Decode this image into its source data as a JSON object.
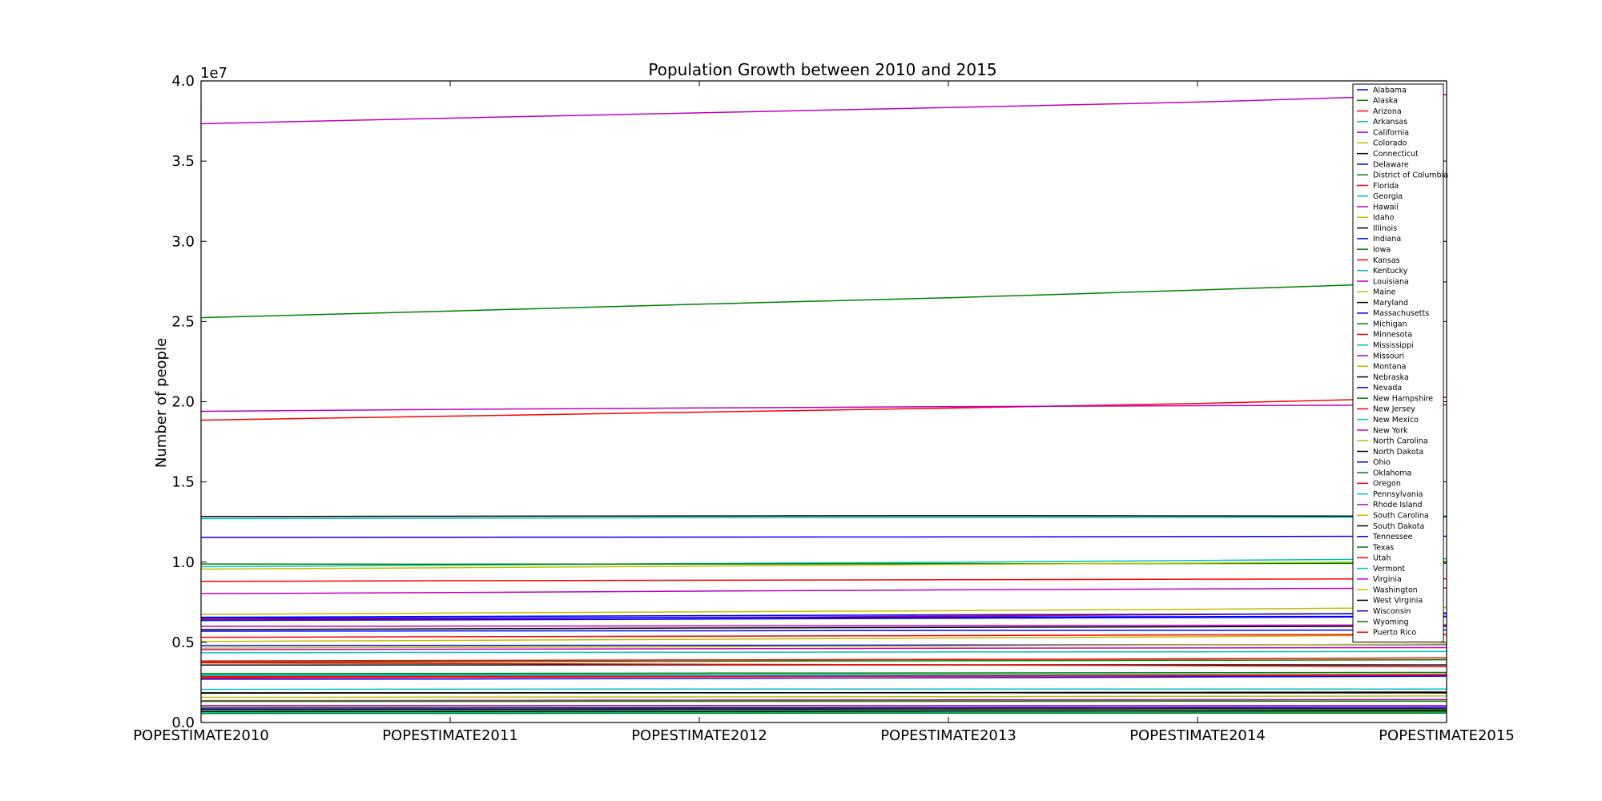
{
  "chart_data": {
    "type": "line",
    "title": "Population Growth between 2010 and 2015",
    "xlabel": "",
    "ylabel": "Number of people",
    "y_scale_label": "1e7",
    "categories": [
      "POPESTIMATE2010",
      "POPESTIMATE2011",
      "POPESTIMATE2012",
      "POPESTIMATE2013",
      "POPESTIMATE2014",
      "POPESTIMATE2015"
    ],
    "yticks": [
      "0.0",
      "0.5",
      "1.0",
      "1.5",
      "2.0",
      "2.5",
      "3.0",
      "3.5",
      "4.0"
    ],
    "ylim": [
      0,
      40000000
    ],
    "grid": false,
    "legend_position": "top-right",
    "series": [
      {
        "name": "Alabama",
        "color": "#0000ff",
        "values": [
          4785000,
          4800000,
          4815000,
          4830000,
          4845000,
          4859000
        ]
      },
      {
        "name": "Alaska",
        "color": "#008000",
        "values": [
          714000,
          722000,
          731000,
          737000,
          737000,
          738000
        ]
      },
      {
        "name": "Arizona",
        "color": "#ff0000",
        "values": [
          6410000,
          6470000,
          6550000,
          6630000,
          6730000,
          6828000
        ]
      },
      {
        "name": "Arkansas",
        "color": "#00bfbf",
        "values": [
          2922000,
          2940000,
          2952000,
          2960000,
          2968000,
          2978000
        ]
      },
      {
        "name": "California",
        "color": "#bf00bf",
        "values": [
          37330000,
          37680000,
          38010000,
          38340000,
          38680000,
          39140000
        ]
      },
      {
        "name": "Colorado",
        "color": "#bfbf00",
        "values": [
          5050000,
          5120000,
          5190000,
          5270000,
          5350000,
          5457000
        ]
      },
      {
        "name": "Connecticut",
        "color": "#000000",
        "values": [
          3580000,
          3590000,
          3594000,
          3598000,
          3596000,
          3591000
        ]
      },
      {
        "name": "Delaware",
        "color": "#0000ff",
        "values": [
          900000,
          908000,
          917000,
          925000,
          935000,
          946000
        ]
      },
      {
        "name": "District of Columbia",
        "color": "#008000",
        "values": [
          605000,
          620000,
          635000,
          650000,
          662000,
          672000
        ]
      },
      {
        "name": "Florida",
        "color": "#ff0000",
        "values": [
          18850000,
          19100000,
          19350000,
          19600000,
          19890000,
          20270000
        ]
      },
      {
        "name": "Georgia",
        "color": "#00bfbf",
        "values": [
          9710000,
          9810000,
          9910000,
          9990000,
          10100000,
          10210000
        ]
      },
      {
        "name": "Hawaii",
        "color": "#bf00bf",
        "values": [
          1364000,
          1379000,
          1395000,
          1409000,
          1417000,
          1431000
        ]
      },
      {
        "name": "Idaho",
        "color": "#bfbf00",
        "values": [
          1570000,
          1584000,
          1595000,
          1612000,
          1634000,
          1655000
        ]
      },
      {
        "name": "Illinois",
        "color": "#000000",
        "values": [
          12840000,
          12860000,
          12880000,
          12890000,
          12880000,
          12860000
        ]
      },
      {
        "name": "Indiana",
        "color": "#0000ff",
        "values": [
          6490000,
          6520000,
          6540000,
          6570000,
          6600000,
          6620000
        ]
      },
      {
        "name": "Iowa",
        "color": "#008000",
        "values": [
          3050000,
          3060000,
          3080000,
          3090000,
          3110000,
          3120000
        ]
      },
      {
        "name": "Kansas",
        "color": "#ff0000",
        "values": [
          2860000,
          2870000,
          2880000,
          2890000,
          2900000,
          2910000
        ]
      },
      {
        "name": "Kentucky",
        "color": "#00bfbf",
        "values": [
          4350000,
          4370000,
          4380000,
          4400000,
          4410000,
          4425000
        ]
      },
      {
        "name": "Louisiana",
        "color": "#bf00bf",
        "values": [
          4540000,
          4570000,
          4600000,
          4630000,
          4650000,
          4670000
        ]
      },
      {
        "name": "Maine",
        "color": "#bfbf00",
        "values": [
          1328000,
          1328000,
          1328000,
          1328000,
          1330000,
          1329000
        ]
      },
      {
        "name": "Maryland",
        "color": "#000000",
        "values": [
          5790000,
          5840000,
          5890000,
          5930000,
          5970000,
          6006000
        ]
      },
      {
        "name": "Massachusetts",
        "color": "#0000ff",
        "values": [
          6560000,
          6610000,
          6660000,
          6710000,
          6750000,
          6794000
        ]
      },
      {
        "name": "Michigan",
        "color": "#008000",
        "values": [
          9880000,
          9870000,
          9880000,
          9900000,
          9910000,
          9923000
        ]
      },
      {
        "name": "Minnesota",
        "color": "#ff0000",
        "values": [
          5310000,
          5350000,
          5380000,
          5420000,
          5460000,
          5490000
        ]
      },
      {
        "name": "Mississippi",
        "color": "#00bfbf",
        "values": [
          2970000,
          2980000,
          2985000,
          2990000,
          2990000,
          2992000
        ]
      },
      {
        "name": "Missouri",
        "color": "#bf00bf",
        "values": [
          5996000,
          6010000,
          6025000,
          6040000,
          6060000,
          6084000
        ]
      },
      {
        "name": "Montana",
        "color": "#bfbf00",
        "values": [
          990000,
          997000,
          1005000,
          1015000,
          1024000,
          1033000
        ]
      },
      {
        "name": "Nebraska",
        "color": "#000000",
        "values": [
          1830000,
          1842000,
          1855000,
          1868000,
          1881000,
          1896000
        ]
      },
      {
        "name": "Nevada",
        "color": "#0000ff",
        "values": [
          2700000,
          2710000,
          2750000,
          2790000,
          2840000,
          2891000
        ]
      },
      {
        "name": "New Hampshire",
        "color": "#008000",
        "values": [
          1317000,
          1318000,
          1322000,
          1325000,
          1329000,
          1331000
        ]
      },
      {
        "name": "New Jersey",
        "color": "#ff0000",
        "values": [
          8800000,
          8840000,
          8870000,
          8900000,
          8930000,
          8958000
        ]
      },
      {
        "name": "New Mexico",
        "color": "#00bfbf",
        "values": [
          2065000,
          2080000,
          2086000,
          2087000,
          2086000,
          2085000
        ]
      },
      {
        "name": "New York",
        "color": "#bf00bf",
        "values": [
          19400000,
          19520000,
          19610000,
          19690000,
          19750000,
          19800000
        ]
      },
      {
        "name": "North Carolina",
        "color": "#bfbf00",
        "values": [
          9560000,
          9650000,
          9750000,
          9850000,
          9940000,
          10040000
        ]
      },
      {
        "name": "North Dakota",
        "color": "#000000",
        "values": [
          674000,
          685000,
          702000,
          723000,
          739000,
          757000
        ]
      },
      {
        "name": "Ohio",
        "color": "#0000ff",
        "values": [
          11540000,
          11550000,
          11560000,
          11570000,
          11590000,
          11613000
        ]
      },
      {
        "name": "Oklahoma",
        "color": "#008000",
        "values": [
          3760000,
          3790000,
          3820000,
          3850000,
          3880000,
          3911000
        ]
      },
      {
        "name": "Oregon",
        "color": "#ff0000",
        "values": [
          3840000,
          3870000,
          3900000,
          3930000,
          3970000,
          4029000
        ]
      },
      {
        "name": "Pennsylvania",
        "color": "#00bfbf",
        "values": [
          12710000,
          12740000,
          12770000,
          12780000,
          12790000,
          12802000
        ]
      },
      {
        "name": "Rhode Island",
        "color": "#bf00bf",
        "values": [
          1053000,
          1052000,
          1052000,
          1053000,
          1055000,
          1056000
        ]
      },
      {
        "name": "South Carolina",
        "color": "#bfbf00",
        "values": [
          4640000,
          4680000,
          4720000,
          4770000,
          4830000,
          4896000
        ]
      },
      {
        "name": "South Dakota",
        "color": "#000000",
        "values": [
          816000,
          824000,
          834000,
          845000,
          853000,
          858000
        ]
      },
      {
        "name": "Tennessee",
        "color": "#0000ff",
        "values": [
          6360000,
          6400000,
          6450000,
          6500000,
          6550000,
          6600000
        ]
      },
      {
        "name": "Texas",
        "color": "#008000",
        "values": [
          25240000,
          25650000,
          26080000,
          26480000,
          26960000,
          27470000
        ]
      },
      {
        "name": "Utah",
        "color": "#ff0000",
        "values": [
          2780000,
          2820000,
          2860000,
          2900000,
          2940000,
          2996000
        ]
      },
      {
        "name": "Vermont",
        "color": "#00bfbf",
        "values": [
          626000,
          627000,
          626000,
          627000,
          626000,
          626000
        ]
      },
      {
        "name": "Virginia",
        "color": "#bf00bf",
        "values": [
          8030000,
          8100000,
          8190000,
          8270000,
          8330000,
          8383000
        ]
      },
      {
        "name": "Washington",
        "color": "#bfbf00",
        "values": [
          6740000,
          6820000,
          6900000,
          6970000,
          7060000,
          7170000
        ]
      },
      {
        "name": "West Virginia",
        "color": "#000000",
        "values": [
          1854000,
          1855000,
          1857000,
          1854000,
          1849000,
          1844000
        ]
      },
      {
        "name": "Wisconsin",
        "color": "#0000ff",
        "values": [
          5690000,
          5710000,
          5720000,
          5740000,
          5750000,
          5771000
        ]
      },
      {
        "name": "Wyoming",
        "color": "#008000",
        "values": [
          564000,
          567000,
          577000,
          583000,
          584000,
          586000
        ]
      },
      {
        "name": "Puerto Rico",
        "color": "#ff0000",
        "values": [
          3720000,
          3680000,
          3630000,
          3590000,
          3540000,
          3474000
        ]
      }
    ]
  }
}
